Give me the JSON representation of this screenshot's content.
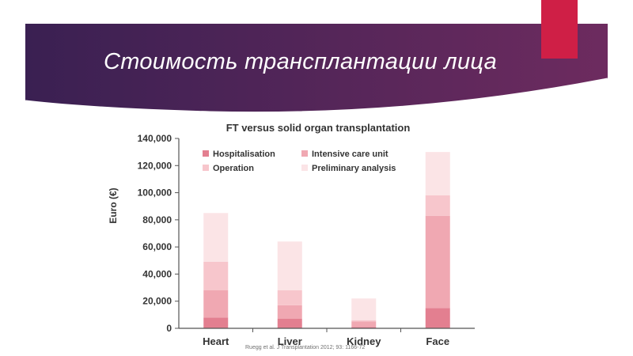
{
  "slide": {
    "title": "Стоимость трансплантации лица",
    "citation": "Ruegg et al. J Transplantation 2012; 93: 1166-72"
  },
  "colors": {
    "banner_left": "#3a2052",
    "banner_right": "#6d2b5f",
    "accent": "#cf1f46",
    "hospitalisation": "#e37f90",
    "intensive_care_unit": "#f0a8b2",
    "operation": "#f7c6cc",
    "preliminary_analysis": "#fbe4e6"
  },
  "chart_data": {
    "type": "bar",
    "stacked": true,
    "title": "FT versus solid organ transplantation",
    "xlabel": "",
    "ylabel": "Euro (€)",
    "ylim": [
      0,
      140000
    ],
    "yticks": [
      0,
      20000,
      40000,
      60000,
      80000,
      100000,
      120000,
      140000
    ],
    "ytick_labels": [
      "0",
      "20,000",
      "40,000",
      "60,000",
      "80,000",
      "100,000",
      "120,000",
      "140,000"
    ],
    "categories": [
      "Heart",
      "Liver",
      "Kidney",
      "Face"
    ],
    "legend": [
      "Hospitalisation",
      "Intensive care unit",
      "Operation",
      "Preliminary analysis"
    ],
    "legend_position": "top-left",
    "series": [
      {
        "name": "Hospitalisation",
        "values": [
          8000,
          7000,
          1000,
          15000
        ]
      },
      {
        "name": "Intensive care unit",
        "values": [
          20000,
          10000,
          4000,
          68000
        ]
      },
      {
        "name": "Operation",
        "values": [
          21000,
          11000,
          1000,
          15000
        ]
      },
      {
        "name": "Preliminary analysis",
        "values": [
          36000,
          36000,
          16000,
          32000
        ]
      }
    ]
  }
}
